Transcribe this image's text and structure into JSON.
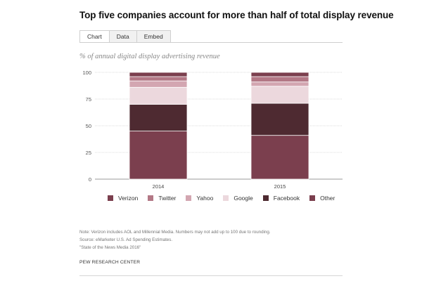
{
  "header": {
    "title": "Top five companies account for more than half of total display revenue"
  },
  "tabs": [
    {
      "label": "Chart",
      "active": true
    },
    {
      "label": "Data",
      "active": false
    },
    {
      "label": "Embed",
      "active": false
    }
  ],
  "colors": {
    "Verizon": "#7b3f4e",
    "Twitter": "#b37886",
    "Yahoo": "#d3a6b1",
    "Google": "#ecd8dd",
    "Facebook": "#4e2a31",
    "Other": "#7b3f4e"
  },
  "chart_data": {
    "type": "bar",
    "stacked": true,
    "title": "Top five companies account for more than half of total display revenue",
    "subtitle": "% of annual digital display advertising revenue",
    "categories": [
      "2014",
      "2015"
    ],
    "ylim": [
      0,
      100
    ],
    "yticks": [
      0,
      25,
      50,
      75,
      100
    ],
    "grid": true,
    "legend": "bottom",
    "series": [
      {
        "name": "Other",
        "values": [
          45,
          41
        ]
      },
      {
        "name": "Facebook",
        "values": [
          25,
          30
        ]
      },
      {
        "name": "Google",
        "values": [
          16,
          16
        ]
      },
      {
        "name": "Yahoo",
        "values": [
          6,
          4
        ]
      },
      {
        "name": "Twitter",
        "values": [
          4,
          5
        ]
      },
      {
        "name": "Verizon",
        "values": [
          4,
          4
        ]
      }
    ],
    "legend_order": [
      "Verizon",
      "Twitter",
      "Yahoo",
      "Google",
      "Facebook",
      "Other"
    ]
  },
  "notes": {
    "note": "Note: Verizon includes AOL and Millennial Media. Numbers may not add up to 100 due to rounding.",
    "source": "Source: eMarketer U.S. Ad Spending Estimates.",
    "report": "\"State of the News Media 2016\""
  },
  "footer": {
    "org": "PEW RESEARCH CENTER"
  }
}
